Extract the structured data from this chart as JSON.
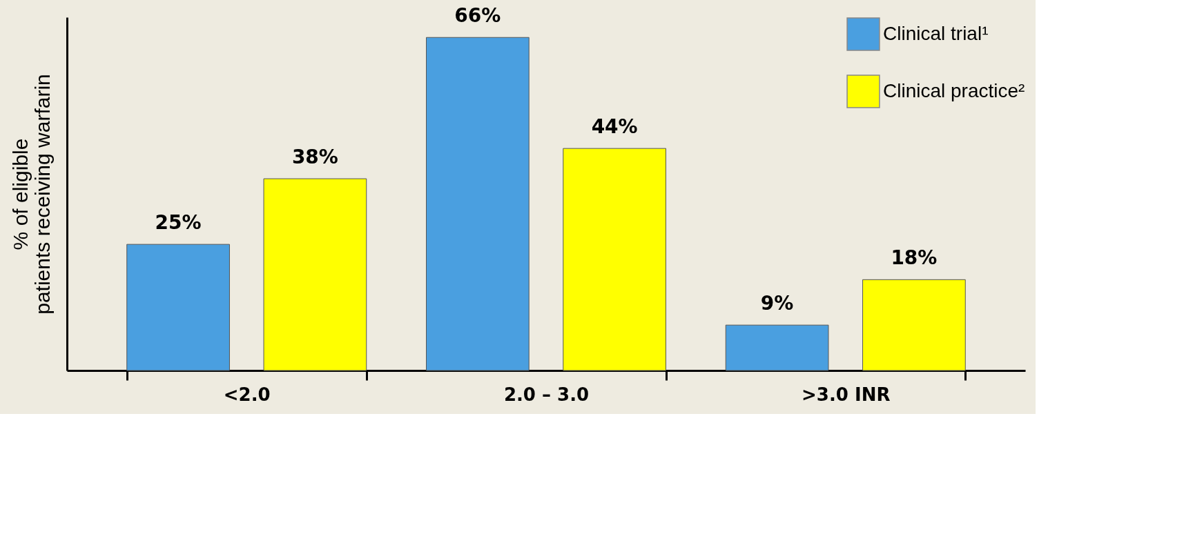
{
  "chart_data": {
    "type": "bar",
    "ylabel": "% of eligible patients receiving warfarin",
    "categories": [
      "<2.0",
      "2.0 – 3.0",
      ">3.0  INR"
    ],
    "series": [
      {
        "name": "Clinical trial¹",
        "color": "#4a9fe0",
        "values": [
          25,
          66,
          9
        ],
        "value_labels": [
          "25%",
          "66%",
          "9%"
        ]
      },
      {
        "name": "Clinical practice²",
        "color": "#ffff00",
        "values": [
          38,
          44,
          18
        ],
        "value_labels": [
          "38%",
          "44%",
          "18%"
        ]
      }
    ],
    "legend": "top right",
    "grid": false,
    "tick_labels": "x"
  }
}
